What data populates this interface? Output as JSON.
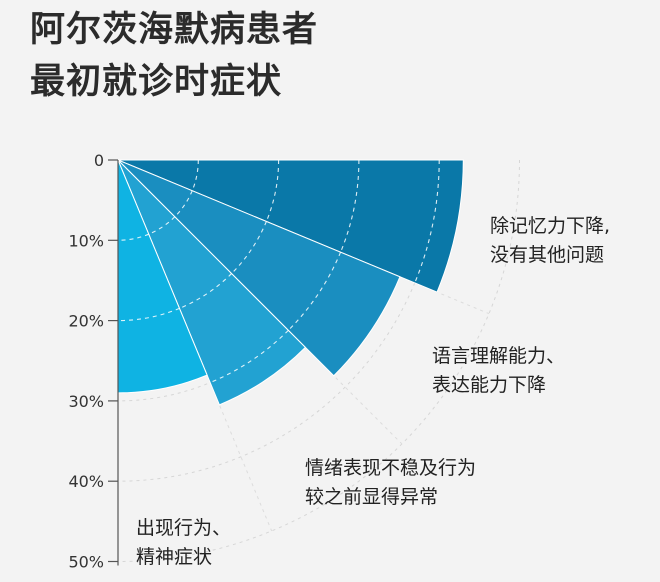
{
  "title": {
    "line1": "阿尔茨海默病患者",
    "line2": "最初就诊时症状"
  },
  "chart_data": {
    "type": "polar-area",
    "title": "阿尔茨海默病患者最初就诊时症状",
    "scale_ticks": [
      "0",
      "10%",
      "20%",
      "30%",
      "40%",
      "50%"
    ],
    "rlim": [
      0,
      50
    ],
    "colors": [
      "#0a78a8",
      "#1a8ec0",
      "#22a2d2",
      "#0fb3e3"
    ],
    "categories": [
      {
        "label_line1": "除记忆力下降,",
        "label_line2": "没有其他问题",
        "value": 43
      },
      {
        "label_line1": "语言理解能力、",
        "label_line2": "表达能力下降",
        "value": 38
      },
      {
        "label_line1": "情绪表现不稳及行为",
        "label_line2": "较之前显得异常",
        "value": 33
      },
      {
        "label_line1": "出现行为、",
        "label_line2": "精神症状",
        "value": 29
      }
    ]
  }
}
